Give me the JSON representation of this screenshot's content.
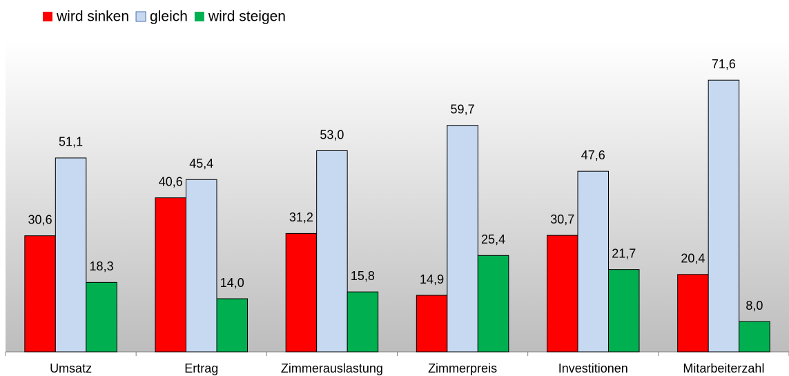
{
  "chart_data": {
    "type": "bar",
    "categories": [
      "Umsatz",
      "Ertrag",
      "Zimmerauslastung",
      "Zimmerpreis",
      "Investitionen",
      "Mitarbeiterzahl"
    ],
    "series": [
      {
        "name": "wird sinken",
        "color": "#ff0000",
        "values": [
          30.6,
          40.6,
          31.2,
          14.9,
          30.7,
          20.4
        ],
        "value_labels": [
          "30,6",
          "40,6",
          "31,2",
          "14,9",
          "30,7",
          "20,4"
        ]
      },
      {
        "name": "gleich",
        "color": "#c6d9f1",
        "values": [
          51.1,
          45.4,
          53.0,
          59.7,
          47.6,
          71.6
        ],
        "value_labels": [
          "51,1",
          "45,4",
          "53,0",
          "59,7",
          "47,6",
          "71,6"
        ]
      },
      {
        "name": "wird steigen",
        "color": "#00b050",
        "values": [
          18.3,
          14.0,
          15.8,
          25.4,
          21.7,
          8.0
        ],
        "value_labels": [
          "18,3",
          "14,0",
          "15,8",
          "25,4",
          "21,7",
          "8,0"
        ]
      }
    ],
    "ylim": [
      0,
      80
    ],
    "legend": "top-left"
  }
}
